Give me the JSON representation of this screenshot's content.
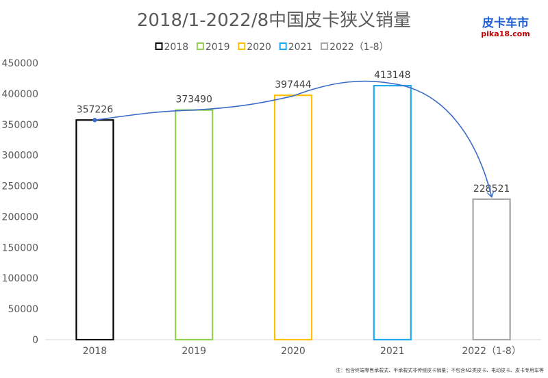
{
  "chart_data": {
    "type": "bar",
    "title": "2018/1-2022/8中国皮卡狭义销量",
    "categories": [
      "2018",
      "2019",
      "2020",
      "2021",
      "2022（1-8）"
    ],
    "values": [
      357226,
      373490,
      397444,
      413148,
      228521
    ],
    "data_labels": [
      "357226",
      "373490",
      "397444",
      "413148",
      "228521"
    ],
    "legend": [
      "2018",
      "2019",
      "2020",
      "2021",
      "2022（1-8）"
    ],
    "colors": [
      "#000000",
      "#92d050",
      "#ffc000",
      "#1eaaf1",
      "#a6a6a6"
    ],
    "bar_style": "outline",
    "ylim": [
      0,
      450000
    ],
    "yticks": [
      "0",
      "50000",
      "100000",
      "150000",
      "200000",
      "250000",
      "300000",
      "350000",
      "400000",
      "450000"
    ],
    "legend_position": "top-center",
    "grid": false,
    "trend_curve_color": "#3a6bc8",
    "trend_arrow": "to-last-bar"
  },
  "logo": {
    "text": "皮卡车市",
    "url": "pika18.com"
  },
  "footnote": "注：包含终端零售承载式、半承载式非传统皮卡销量；不包含N2类皮卡、电动皮卡、皮卡专用车等"
}
